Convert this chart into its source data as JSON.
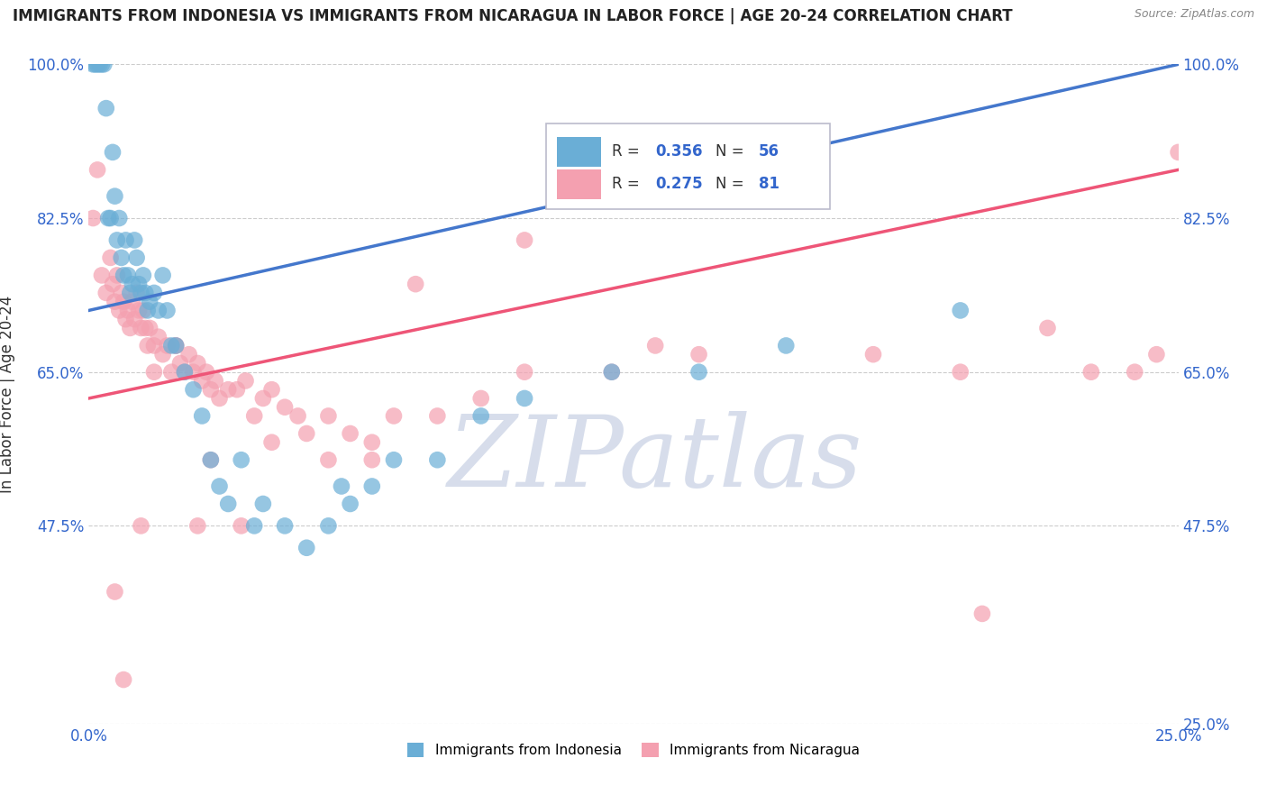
{
  "title": "IMMIGRANTS FROM INDONESIA VS IMMIGRANTS FROM NICARAGUA IN LABOR FORCE | AGE 20-24 CORRELATION CHART",
  "source": "Source: ZipAtlas.com",
  "ylabel": "In Labor Force | Age 20-24",
  "xlim": [
    0.0,
    25.0
  ],
  "ylim": [
    25.0,
    100.0
  ],
  "xticks": [
    0.0,
    5.0,
    10.0,
    15.0,
    20.0,
    25.0
  ],
  "yticks": [
    25.0,
    47.5,
    65.0,
    82.5,
    100.0
  ],
  "xtick_labels": [
    "0.0%",
    "",
    "",
    "",
    "",
    "25.0%"
  ],
  "ytick_labels": [
    "",
    "47.5%",
    "65.0%",
    "82.5%",
    "100.0%"
  ],
  "ytick_labels_right": [
    "25.0%",
    "47.5%",
    "65.0%",
    "82.5%",
    "100.0%"
  ],
  "blue_R": 0.356,
  "blue_N": 56,
  "pink_R": 0.275,
  "pink_N": 81,
  "blue_color": "#6aaed6",
  "pink_color": "#f4a0b0",
  "blue_line_color": "#4477cc",
  "pink_line_color": "#ee5577",
  "legend_label_blue": "Immigrants from Indonesia",
  "legend_label_pink": "Immigrants from Nicaragua",
  "watermark": "ZIPatlas",
  "background_color": "#ffffff",
  "grid_color": "#cccccc",
  "blue_x": [
    0.1,
    0.15,
    0.2,
    0.25,
    0.3,
    0.35,
    0.4,
    0.45,
    0.5,
    0.55,
    0.6,
    0.65,
    0.7,
    0.75,
    0.8,
    0.85,
    0.9,
    0.95,
    1.0,
    1.05,
    1.1,
    1.15,
    1.2,
    1.25,
    1.3,
    1.35,
    1.4,
    1.5,
    1.6,
    1.7,
    1.8,
    1.9,
    2.0,
    2.2,
    2.4,
    2.6,
    2.8,
    3.0,
    3.2,
    3.5,
    3.8,
    4.0,
    4.5,
    5.0,
    5.5,
    5.8,
    6.0,
    6.5,
    7.0,
    8.0,
    9.0,
    10.0,
    12.0,
    14.0,
    16.0,
    20.0
  ],
  "blue_y": [
    100.0,
    100.0,
    100.0,
    100.0,
    100.0,
    100.0,
    95.0,
    82.5,
    82.5,
    90.0,
    85.0,
    80.0,
    82.5,
    78.0,
    76.0,
    80.0,
    76.0,
    74.0,
    75.0,
    80.0,
    78.0,
    75.0,
    74.0,
    76.0,
    74.0,
    72.0,
    73.0,
    74.0,
    72.0,
    76.0,
    72.0,
    68.0,
    68.0,
    65.0,
    63.0,
    60.0,
    55.0,
    52.0,
    50.0,
    55.0,
    47.5,
    50.0,
    47.5,
    45.0,
    47.5,
    52.0,
    50.0,
    52.0,
    55.0,
    55.0,
    60.0,
    62.0,
    65.0,
    65.0,
    68.0,
    72.0
  ],
  "pink_x": [
    0.1,
    0.2,
    0.3,
    0.4,
    0.5,
    0.55,
    0.6,
    0.65,
    0.7,
    0.75,
    0.8,
    0.85,
    0.9,
    0.95,
    1.0,
    1.05,
    1.1,
    1.15,
    1.2,
    1.25,
    1.3,
    1.35,
    1.4,
    1.5,
    1.6,
    1.7,
    1.8,
    1.9,
    2.0,
    2.1,
    2.2,
    2.3,
    2.4,
    2.5,
    2.6,
    2.7,
    2.8,
    2.9,
    3.0,
    3.2,
    3.4,
    3.6,
    3.8,
    4.0,
    4.2,
    4.5,
    4.8,
    5.0,
    5.5,
    6.0,
    6.5,
    7.0,
    8.0,
    9.0,
    10.0,
    12.0,
    14.0,
    16.0,
    18.0,
    20.0,
    22.0,
    24.0,
    25.0,
    2.5,
    2.8,
    3.5,
    4.2,
    5.5,
    6.5,
    7.5,
    10.0,
    13.0,
    16.5,
    20.5,
    23.0,
    24.5,
    0.6,
    0.8,
    1.2,
    1.5,
    2.0
  ],
  "pink_y": [
    82.5,
    88.0,
    76.0,
    74.0,
    78.0,
    75.0,
    73.0,
    76.0,
    72.0,
    74.0,
    73.0,
    71.0,
    72.0,
    70.0,
    73.0,
    71.0,
    74.0,
    72.0,
    70.0,
    72.0,
    70.0,
    68.0,
    70.0,
    68.0,
    69.0,
    67.0,
    68.0,
    65.0,
    68.0,
    66.0,
    65.0,
    67.0,
    65.0,
    66.0,
    64.0,
    65.0,
    63.0,
    64.0,
    62.0,
    63.0,
    63.0,
    64.0,
    60.0,
    62.0,
    63.0,
    61.0,
    60.0,
    58.0,
    55.0,
    58.0,
    57.0,
    60.0,
    60.0,
    62.0,
    65.0,
    65.0,
    67.0,
    85.0,
    67.0,
    65.0,
    70.0,
    65.0,
    90.0,
    47.5,
    55.0,
    47.5,
    57.0,
    60.0,
    55.0,
    75.0,
    80.0,
    68.0,
    85.0,
    37.5,
    65.0,
    67.0,
    40.0,
    30.0,
    47.5,
    65.0,
    68.0
  ],
  "blue_line_x0": 0.0,
  "blue_line_y0": 72.0,
  "blue_line_x1": 25.0,
  "blue_line_y1": 100.0,
  "pink_line_x0": 0.0,
  "pink_line_y0": 62.0,
  "pink_line_x1": 25.0,
  "pink_line_y1": 88.0
}
